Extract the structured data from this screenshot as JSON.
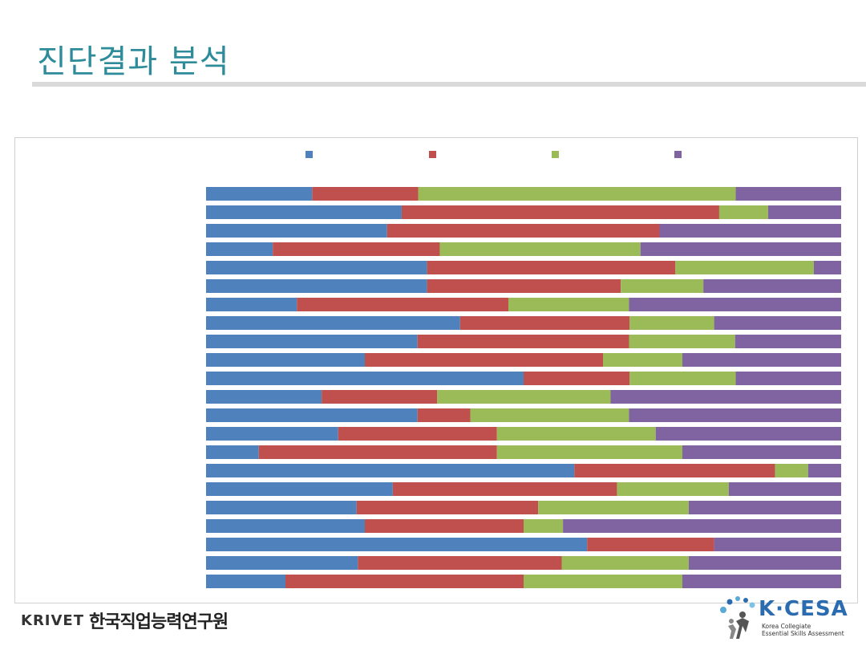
{
  "slide": {
    "title": "진단결과 분석"
  },
  "footer": {
    "left_logo_text": "KRIVET",
    "left_org_name": "한국직업능력연구원",
    "right_logo_text": "K·CESA",
    "right_tagline_1": "Korea Collegiate",
    "right_tagline_2": "Essential Skills Assessment"
  },
  "colors": {
    "title": "#2e8b9a",
    "series": [
      "#4f81bd",
      "#c0504d",
      "#9bbb59",
      "#8064a2"
    ]
  },
  "chart_data": {
    "type": "bar",
    "orientation": "horizontal",
    "stacked": "percent",
    "title": "",
    "xlabel": "",
    "ylabel": "",
    "xlim": [
      0,
      100
    ],
    "legend_position": "top",
    "grid": false,
    "categories": [
      "",
      "",
      "",
      "",
      "",
      "",
      "",
      "",
      "",
      "",
      "",
      "",
      "",
      "",
      "",
      "",
      "",
      "",
      "",
      "",
      "",
      ""
    ],
    "series": [
      {
        "name": "",
        "values": [
          16.7,
          30.8,
          28.5,
          10.5,
          34.8,
          34.8,
          14.3,
          40.0,
          33.3,
          25.0,
          50.0,
          18.2,
          33.3,
          20.8,
          8.3,
          58.0,
          29.4,
          23.7,
          25.0,
          60.0,
          23.9,
          12.5
        ]
      },
      {
        "name": "",
        "values": [
          16.7,
          50.0,
          42.9,
          26.3,
          39.1,
          30.5,
          33.3,
          26.7,
          33.3,
          37.5,
          16.7,
          18.2,
          8.3,
          25.0,
          37.5,
          31.6,
          35.3,
          28.6,
          25.0,
          20.0,
          32.1,
          37.5
        ]
      },
      {
        "name": "",
        "values": [
          50.0,
          7.7,
          0.0,
          31.6,
          21.8,
          13.0,
          19.0,
          13.3,
          16.7,
          12.5,
          16.7,
          27.3,
          25.0,
          25.0,
          29.2,
          5.2,
          17.6,
          23.7,
          6.2,
          0.0,
          20.0,
          25.0
        ]
      },
      {
        "name": "",
        "values": [
          16.6,
          11.5,
          28.6,
          31.6,
          4.3,
          21.7,
          33.4,
          20.0,
          16.7,
          25.0,
          16.6,
          36.3,
          33.4,
          29.2,
          25.0,
          5.2,
          17.7,
          24.0,
          43.8,
          20.0,
          24.0,
          25.0
        ]
      }
    ]
  }
}
